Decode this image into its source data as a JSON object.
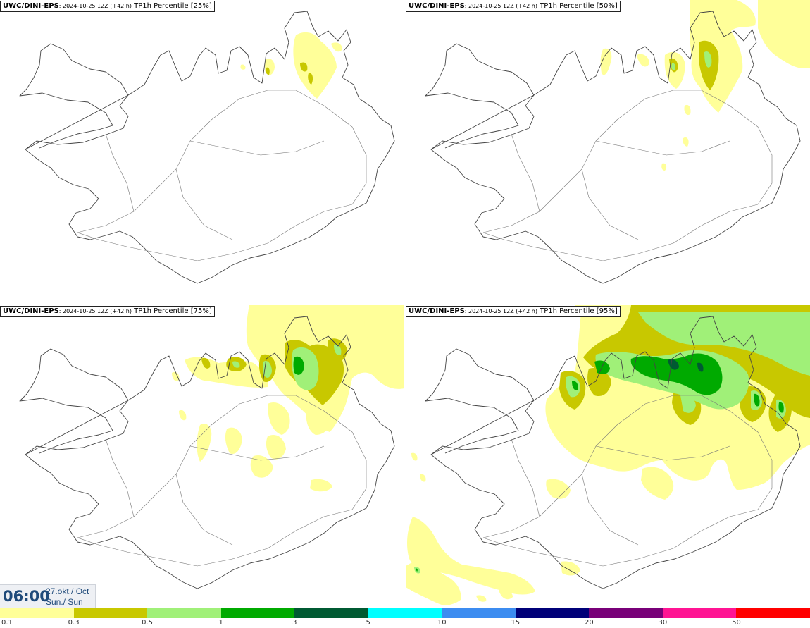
{
  "panels": [
    {
      "model": "UWC/DINI-EPS",
      "run": ": 2024-10-25 12Z (+42 h)",
      "product": " TP1h Percentile [25%]"
    },
    {
      "model": "UWC/DINI-EPS",
      "run": ": 2024-10-25 12Z (+42 h)",
      "product": " TP1h Percentile [50%]"
    },
    {
      "model": "UWC/DINI-EPS",
      "run": ": 2024-10-25 12Z (+42 h)",
      "product": " TP1h Percentile [75%]"
    },
    {
      "model": "UWC/DINI-EPS",
      "run": ": 2024-10-25 12Z (+42 h)",
      "product": " TP1h Percentile [95%]"
    }
  ],
  "valid_time": {
    "clock": "06:00",
    "date_line": "27.okt./ Oct",
    "day_line": "Sun./ Sun"
  },
  "legend": {
    "labels": [
      "0.1",
      "0.3",
      "0.5",
      "1",
      "3",
      "5",
      "10",
      "15",
      "20",
      "30",
      "50"
    ],
    "colors": [
      "#ffff99",
      "#c8c800",
      "#a0f078",
      "#00aa00",
      "#005a32",
      "#00ffff",
      "#3c8cf0",
      "#000078",
      "#780078",
      "#ff1493",
      "#ff0000"
    ]
  },
  "colors": {
    "coast": "#444444",
    "roads": "#777777"
  }
}
